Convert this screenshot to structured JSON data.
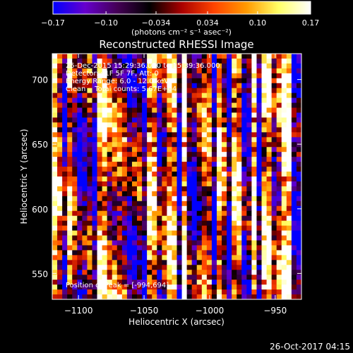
{
  "chart_data": {
    "type": "heatmap",
    "title": "Reconstructed RHESSI Image",
    "xlabel": "Heliocentric X (arcsec)",
    "ylabel": "Heliocentric Y (arcsec)",
    "xlim": [
      -1120,
      -930
    ],
    "ylim": [
      530,
      720
    ],
    "x_ticks": [
      -1100,
      -1050,
      -1000,
      -950
    ],
    "x_tick_labels": [
      "−1100",
      "−1050",
      "−1000",
      "−950"
    ],
    "y_ticks": [
      550,
      600,
      650,
      700
    ],
    "y_tick_labels": [
      "550",
      "600",
      "650",
      "700"
    ],
    "grid": false,
    "colorbar": {
      "range": [
        -0.17,
        0.17
      ],
      "ticks": [
        -0.17,
        -0.1,
        -0.034,
        0.034,
        0.1,
        0.17
      ],
      "tick_labels": [
        "−0.17",
        "−0.10",
        "−0.034",
        "0.034",
        "0.10",
        "0.17"
      ],
      "units_label": "(photons cm⁻² s⁻¹ asec⁻²)",
      "colormap": [
        "#0000ff",
        "#6600cc",
        "#440055",
        "#000000",
        "#aa0000",
        "#ff4400",
        "#ff9900",
        "#ffff66",
        "#ffffff"
      ]
    },
    "annotations": [
      "25-Dec-2015 15:29:36.000 to 15:39:36.000",
      "Detectors: 1F 5F 7F, Att: 0",
      "Energy Range: 6.0 - 12.0 keV",
      "Clean    Total counts: 5.67E+04"
    ],
    "peak_label": "Position of Peak = [-994,694]",
    "heatmap_grid": {
      "nx": 50,
      "ny": 50
    }
  },
  "footer": {
    "timestamp": "26-Oct-2017 04:15"
  }
}
